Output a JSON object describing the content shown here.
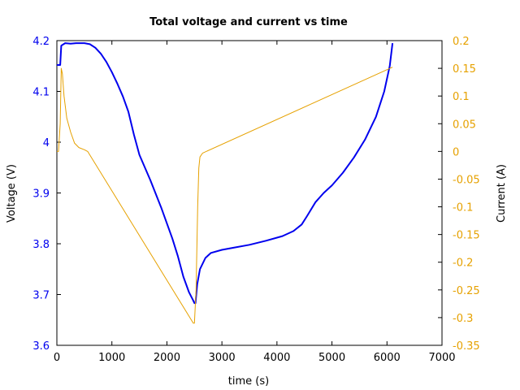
{
  "chart_data": {
    "type": "line",
    "title": "Total voltage and current vs time",
    "xlabel": "time (s)",
    "ylabel_left": "Voltage (V)",
    "ylabel_right": "Current (A)",
    "xlim": [
      0,
      7000
    ],
    "ylim_left": [
      3.6,
      4.2
    ],
    "ylim_right": [
      -0.35,
      0.2
    ],
    "x_ticks": [
      "0",
      "1000",
      "2000",
      "3000",
      "4000",
      "5000",
      "6000",
      "7000"
    ],
    "y_left_ticks": [
      "3.6",
      "3.7",
      "3.8",
      "3.9",
      "4",
      "4.1",
      "4.2"
    ],
    "y_right_ticks": [
      "-0.35",
      "-0.3",
      "-0.25",
      "-0.2",
      "-0.15",
      "-0.1",
      "-0.05",
      "0",
      "0.05",
      "0.1",
      "0.15",
      "0.2"
    ],
    "colors": {
      "voltage": "#0000ee",
      "current": "#e6a100",
      "left_axis_text": "#0000ee",
      "right_axis_text": "#e6a100"
    },
    "grid": false,
    "series": [
      {
        "axis": "left",
        "color": "#0000ee",
        "points": [
          [
            0,
            4.152
          ],
          [
            60,
            4.152
          ],
          [
            80,
            4.19
          ],
          [
            150,
            4.195
          ],
          [
            250,
            4.194
          ],
          [
            350,
            4.195
          ],
          [
            500,
            4.195
          ],
          [
            600,
            4.193
          ],
          [
            700,
            4.186
          ],
          [
            800,
            4.174
          ],
          [
            900,
            4.158
          ],
          [
            1000,
            4.138
          ],
          [
            1100,
            4.115
          ],
          [
            1200,
            4.09
          ],
          [
            1300,
            4.06
          ],
          [
            1400,
            4.015
          ],
          [
            1500,
            3.975
          ],
          [
            1700,
            3.925
          ],
          [
            1900,
            3.87
          ],
          [
            2100,
            3.81
          ],
          [
            2200,
            3.775
          ],
          [
            2300,
            3.735
          ],
          [
            2400,
            3.705
          ],
          [
            2470,
            3.69
          ],
          [
            2500,
            3.683
          ],
          [
            2520,
            3.683
          ],
          [
            2550,
            3.72
          ],
          [
            2600,
            3.75
          ],
          [
            2700,
            3.772
          ],
          [
            2800,
            3.782
          ],
          [
            3000,
            3.788
          ],
          [
            3200,
            3.792
          ],
          [
            3500,
            3.798
          ],
          [
            3800,
            3.806
          ],
          [
            4100,
            3.815
          ],
          [
            4300,
            3.825
          ],
          [
            4450,
            3.838
          ],
          [
            4550,
            3.855
          ],
          [
            4700,
            3.882
          ],
          [
            4850,
            3.9
          ],
          [
            5000,
            3.915
          ],
          [
            5200,
            3.94
          ],
          [
            5400,
            3.97
          ],
          [
            5600,
            4.005
          ],
          [
            5800,
            4.05
          ],
          [
            5950,
            4.1
          ],
          [
            6050,
            4.15
          ],
          [
            6100,
            4.195
          ]
        ]
      },
      {
        "axis": "right",
        "color": "#e6a100",
        "points": [
          [
            0,
            0.0
          ],
          [
            30,
            0.0
          ],
          [
            60,
            0.05
          ],
          [
            80,
            0.15
          ],
          [
            100,
            0.14
          ],
          [
            130,
            0.1
          ],
          [
            180,
            0.06
          ],
          [
            250,
            0.035
          ],
          [
            320,
            0.015
          ],
          [
            400,
            0.007
          ],
          [
            500,
            0.003
          ],
          [
            560,
            0.0
          ],
          [
            2480,
            -0.31
          ],
          [
            2500,
            -0.31
          ],
          [
            2530,
            -0.25
          ],
          [
            2560,
            -0.1
          ],
          [
            2580,
            -0.03
          ],
          [
            2600,
            -0.01
          ],
          [
            2650,
            -0.003
          ],
          [
            6100,
            0.152
          ]
        ]
      }
    ]
  }
}
